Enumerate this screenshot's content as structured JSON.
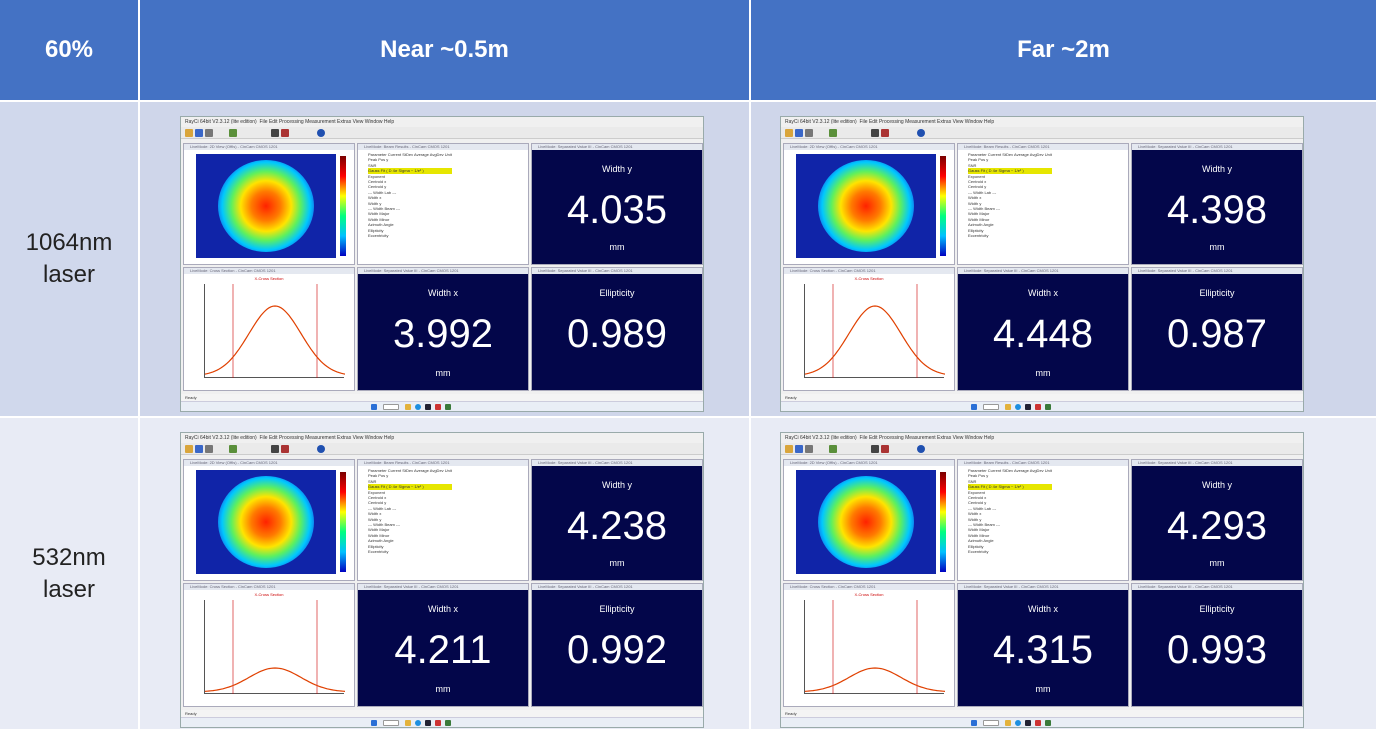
{
  "header": {
    "corner": "60%",
    "col_near": "Near ~0.5m",
    "col_far": "Far ~2m"
  },
  "rows": [
    {
      "label": "1064nm laser",
      "near": {
        "width_y_label": "Width y",
        "width_y": "4.035",
        "width_x_label": "Width x",
        "width_x": "3.992",
        "ellipticity_label": "Ellipticity",
        "ellipticity": "0.989",
        "unit": "mm"
      },
      "far": {
        "width_y_label": "Width y",
        "width_y": "4.398",
        "width_x_label": "Width x",
        "width_x": "4.448",
        "ellipticity_label": "Ellipticity",
        "ellipticity": "0.987",
        "unit": "mm"
      }
    },
    {
      "label": "532nm laser",
      "near": {
        "width_y_label": "Width y",
        "width_y": "4.238",
        "width_x_label": "Width x",
        "width_x": "4.211",
        "ellipticity_label": "Ellipticity",
        "ellipticity": "0.992",
        "unit": "mm"
      },
      "far": {
        "width_y_label": "Width y",
        "width_y": "4.293",
        "width_x_label": "Width x",
        "width_x": "4.315",
        "ellipticity_label": "Ellipticity",
        "ellipticity": "0.993",
        "unit": "mm"
      }
    }
  ],
  "app": {
    "title": "RayCi 64bit V2.3.12 (lite edition)",
    "menu": "File   Edit   Processing   Measurement   Extras   View   Window   Help",
    "pane_2d": "LiveMode: 2D View (OffIs) - CinCam CMOS 1201",
    "pane_table": "LiveMode: Beam Results - CinCam CMOS 1201",
    "pane_value": "LiveMode: Separated Value III - CinCam CMOS 1201",
    "pane_cross": "LiveMode: Cross Section - CinCam CMOS 1201",
    "cross_title": "X-Cross Section",
    "table_rows": [
      "Parameter   Current   StDev   Average   AvgDev   Unit",
      "Peak Pos    y",
      "SNR",
      "Gauss Fit ( D 4σ Sigma ~ 1/e² )",
      "Exponent",
      "Centroid    x",
      "Centroid    y",
      "--- Width Lab ---",
      "Width       x",
      "Width       y",
      "--- Width Beam ---",
      "Width Major",
      "Width Minor",
      "Azimuth Angle",
      "Ellipticity",
      "Eccentricity"
    ],
    "status": "Ready",
    "icon_names": [
      "folder-icon",
      "save-icon",
      "camera-icon",
      "settings-icon"
    ]
  }
}
